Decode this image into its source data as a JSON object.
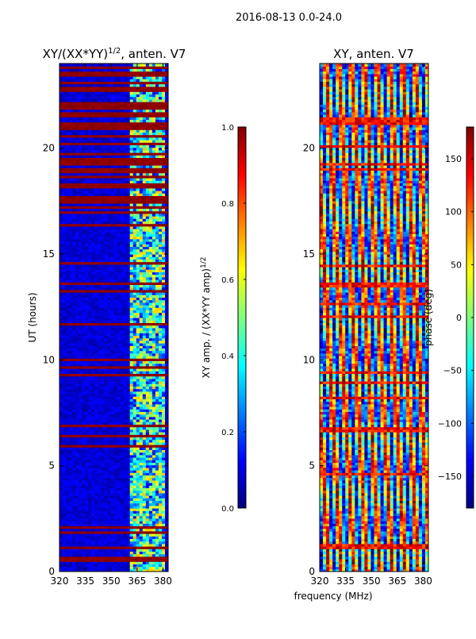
{
  "suptitle": "2016-08-13 0.0-24.0",
  "colormap": [
    "#00007f",
    "#0000ff",
    "#007fff",
    "#00ffff",
    "#7fff7f",
    "#ffff00",
    "#ff7f00",
    "#ff0000",
    "#7f0000"
  ],
  "chart_data": [
    {
      "type": "heatmap",
      "title_main": "XY/(XX*YY)",
      "title_exp": "1/2",
      "title_tail": ", anten. V7",
      "ylabel": "UT (hours)",
      "xlabel": "",
      "xlim": [
        320,
        383
      ],
      "ylim": [
        0,
        24
      ],
      "xticks": [
        320,
        335,
        350,
        365,
        380
      ],
      "yticks": [
        0,
        5,
        10,
        15,
        20
      ],
      "xtick_labels": [
        "320",
        "335",
        "350",
        "365",
        "380"
      ],
      "ytick_labels": [
        "0",
        "5",
        "10",
        "15",
        "20"
      ],
      "heat_band_mhz": [
        360,
        382
      ],
      "colorbar": {
        "label_main": "XY amp. / (XX*YY amp)",
        "label_exp": "1/2",
        "range": [
          0.0,
          1.0
        ],
        "ticks": [
          0.0,
          0.2,
          0.4,
          0.6,
          0.8,
          1.0
        ],
        "tick_labels": [
          "0.0",
          "0.2",
          "0.4",
          "0.6",
          "0.8",
          "1.0"
        ]
      }
    },
    {
      "type": "heatmap",
      "title": "XY, anten. V7",
      "xlabel": "frequency (MHz)",
      "ylabel": "",
      "xlim": [
        320,
        383
      ],
      "ylim": [
        0,
        24
      ],
      "xticks": [
        320,
        335,
        350,
        365,
        380
      ],
      "yticks": [
        0,
        5,
        10,
        15,
        20
      ],
      "xtick_labels": [
        "320",
        "335",
        "350",
        "365",
        "380"
      ],
      "ytick_labels": [
        "0",
        "5",
        "10",
        "15",
        "20"
      ],
      "colorbar": {
        "label": "phase (deg)",
        "range": [
          -180,
          180
        ],
        "ticks": [
          -150,
          -100,
          -50,
          0,
          50,
          100,
          150
        ],
        "tick_labels": [
          "−150",
          "−100",
          "−50",
          "0",
          "50",
          "100",
          "150"
        ]
      }
    }
  ]
}
